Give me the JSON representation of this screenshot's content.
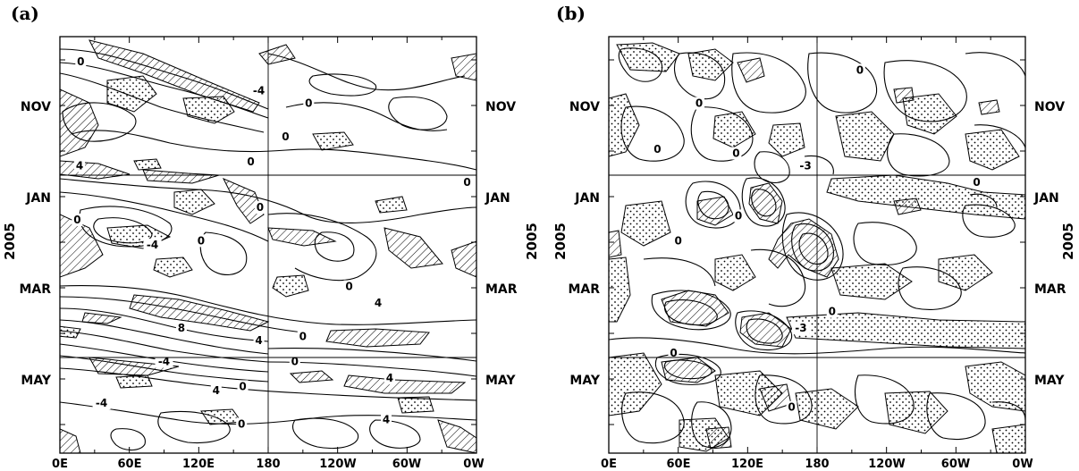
{
  "chart_data": [
    {
      "type": "contour",
      "panel_label": "(a)",
      "x_ticks": [
        "0E",
        "60E",
        "120E",
        "180",
        "120W",
        "60W",
        "0W"
      ],
      "y_label": "2005",
      "y_month_labels": [
        "NOV",
        "JAN",
        "MAR",
        "MAY"
      ],
      "grid": "reference lines at 180 and at January and April",
      "contour_labels": [
        {
          "text": "0",
          "lon": 18,
          "t": 0.06
        },
        {
          "text": "-4",
          "lon": 172,
          "t": 0.13
        },
        {
          "text": "0",
          "lon": 215,
          "t": 0.16
        },
        {
          "text": "0",
          "lon": 195,
          "t": 0.24
        },
        {
          "text": "0",
          "lon": 165,
          "t": 0.3
        },
        {
          "text": "4",
          "lon": 17,
          "t": 0.31
        },
        {
          "text": "0",
          "lon": 352,
          "t": 0.35
        },
        {
          "text": "0",
          "lon": 173,
          "t": 0.41
        },
        {
          "text": "0",
          "lon": 15,
          "t": 0.44
        },
        {
          "text": "-4",
          "lon": 80,
          "t": 0.5
        },
        {
          "text": "0",
          "lon": 122,
          "t": 0.49
        },
        {
          "text": "0",
          "lon": 250,
          "t": 0.6
        },
        {
          "text": "4",
          "lon": 275,
          "t": 0.64
        },
        {
          "text": "8",
          "lon": 105,
          "t": 0.7
        },
        {
          "text": "4",
          "lon": 172,
          "t": 0.73
        },
        {
          "text": "0",
          "lon": 210,
          "t": 0.72
        },
        {
          "text": "-4",
          "lon": 90,
          "t": 0.78
        },
        {
          "text": "0",
          "lon": 203,
          "t": 0.78
        },
        {
          "text": "4",
          "lon": 285,
          "t": 0.82
        },
        {
          "text": "4",
          "lon": 135,
          "t": 0.85
        },
        {
          "text": "0",
          "lon": 158,
          "t": 0.84
        },
        {
          "text": "-4",
          "lon": 36,
          "t": 0.88
        },
        {
          "text": "0",
          "lon": 157,
          "t": 0.93
        },
        {
          "text": "4",
          "lon": 282,
          "t": 0.92
        }
      ]
    },
    {
      "type": "contour",
      "panel_label": "(b)",
      "x_ticks": [
        "0E",
        "60E",
        "120E",
        "180",
        "120W",
        "60W",
        "0W"
      ],
      "y_label": "2005",
      "y_month_labels": [
        "NOV",
        "JAN",
        "MAR",
        "MAY"
      ],
      "grid": "reference lines at 180 and at January and April",
      "contour_labels": [
        {
          "text": "0",
          "lon": 217,
          "t": 0.08
        },
        {
          "text": "0",
          "lon": 78,
          "t": 0.16
        },
        {
          "text": "0",
          "lon": 42,
          "t": 0.27
        },
        {
          "text": "0",
          "lon": 110,
          "t": 0.28
        },
        {
          "text": "-3",
          "lon": 170,
          "t": 0.31
        },
        {
          "text": "0",
          "lon": 318,
          "t": 0.35
        },
        {
          "text": "0",
          "lon": 112,
          "t": 0.43
        },
        {
          "text": "0",
          "lon": 60,
          "t": 0.49
        },
        {
          "text": "-3",
          "lon": 166,
          "t": 0.7
        },
        {
          "text": "0",
          "lon": 193,
          "t": 0.66
        },
        {
          "text": "0",
          "lon": 56,
          "t": 0.76
        },
        {
          "text": "0",
          "lon": 158,
          "t": 0.89
        }
      ]
    }
  ]
}
